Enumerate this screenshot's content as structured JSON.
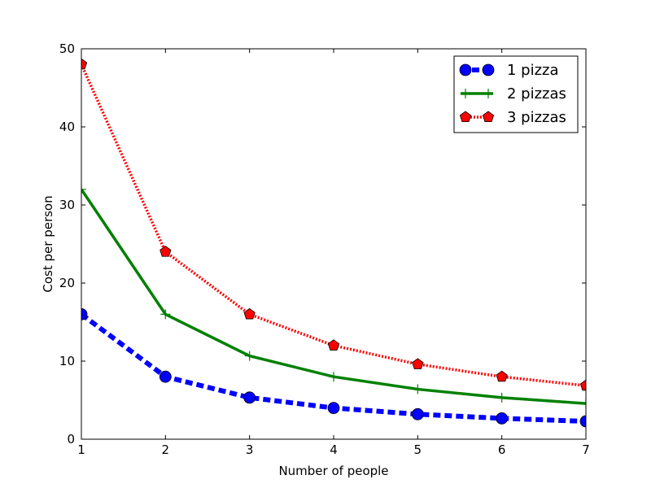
{
  "chart_data": {
    "type": "line",
    "title": "",
    "xlabel": "Number of people",
    "ylabel": "Cost per person",
    "x": [
      1,
      2,
      3,
      4,
      5,
      6,
      7
    ],
    "xlim": [
      1,
      7
    ],
    "ylim": [
      0,
      50
    ],
    "xticks": [
      "1",
      "2",
      "3",
      "4",
      "5",
      "6",
      "7"
    ],
    "yticks": [
      "0",
      "10",
      "20",
      "30",
      "40",
      "50"
    ],
    "grid": false,
    "legend_position": "top-right",
    "series": [
      {
        "name": "1 pizza",
        "values": [
          16,
          8,
          5.33,
          4,
          3.2,
          2.67,
          2.29
        ],
        "color": "#0000ff",
        "line_style": "dashed",
        "marker": "circle"
      },
      {
        "name": "2 pizzas",
        "values": [
          32,
          16,
          10.67,
          8,
          6.4,
          5.33,
          4.57
        ],
        "color": "#008000",
        "line_style": "solid",
        "marker": "plus"
      },
      {
        "name": "3 pizzas",
        "values": [
          48,
          24,
          16,
          12,
          9.6,
          8,
          6.86
        ],
        "color": "#ff0000",
        "line_style": "dotted",
        "marker": "pentagon"
      }
    ]
  }
}
